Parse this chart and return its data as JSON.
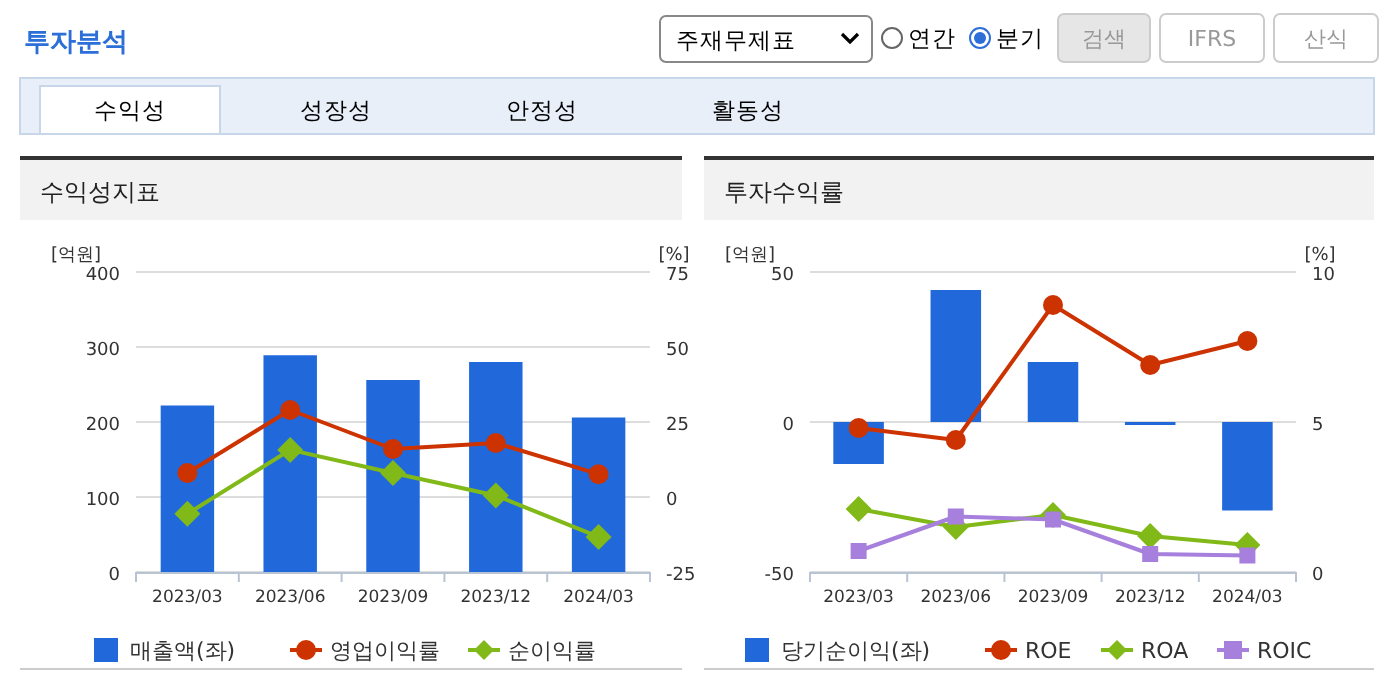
{
  "chart_data": [
    {
      "type": "other",
      "title": "투자분석",
      "annotations": [
        "주재무제표",
        "연간",
        "분기",
        "검색",
        "IFRS",
        "산식",
        "수익성",
        "성장성",
        "안정성",
        "활동성"
      ]
    },
    {
      "type": "bar",
      "title": "수익성지표",
      "ylabel": "[억원]",
      "y2label": "[%]",
      "categories": [
        "2023/03",
        "2023/06",
        "2023/09",
        "2023/12",
        "2024/03"
      ],
      "ylim": [
        0,
        400
      ],
      "yticks": [
        0,
        100,
        200,
        300,
        400
      ],
      "y2lim": [
        -25,
        75
      ],
      "y2ticks": [
        -25,
        0,
        25,
        50,
        75
      ],
      "grid": "y",
      "legend": "bottom",
      "series": [
        {
          "name": "매출액(좌)",
          "type": "bar",
          "color": "#2169db",
          "values": [
            222,
            289,
            256,
            280,
            206
          ]
        },
        {
          "name": "영업이익률",
          "type": "line",
          "axis": "y2",
          "marker": "circle",
          "color": "#cc3300",
          "values": [
            8.0,
            29,
            16,
            18,
            7.6
          ]
        },
        {
          "name": "순이익률",
          "type": "line",
          "axis": "y2",
          "marker": "diamond",
          "color": "#80b918",
          "values": [
            -5.6,
            15.7,
            8,
            0.5,
            -13.3
          ]
        }
      ]
    },
    {
      "type": "bar",
      "title": "투자수익률",
      "ylabel": "[억원]",
      "y2label": "[%]",
      "categories": [
        "2023/03",
        "2023/06",
        "2023/09",
        "2023/12",
        "2024/03"
      ],
      "ylim": [
        -50,
        50
      ],
      "yticks": [
        -50,
        0,
        50
      ],
      "y2lim": [
        0,
        10
      ],
      "y2ticks": [
        0,
        5,
        10
      ],
      "grid": "y",
      "legend": "bottom",
      "series": [
        {
          "name": "당기순이익(좌)",
          "type": "bar",
          "color": "#2169db",
          "values": [
            -14,
            44,
            20,
            -1,
            -29.5
          ]
        },
        {
          "name": "ROE",
          "type": "line",
          "axis": "y2",
          "marker": "circle",
          "color": "#cc3300",
          "values": [
            4.8,
            4.4,
            8.9,
            6.9,
            7.7
          ]
        },
        {
          "name": "ROA",
          "type": "line",
          "axis": "y2",
          "marker": "diamond",
          "color": "#80b918",
          "values": [
            2.1,
            1.5,
            1.9,
            1.2,
            0.9
          ]
        },
        {
          "name": "ROIC",
          "type": "line",
          "axis": "y2",
          "marker": "square",
          "color": "#a77fdc",
          "values": [
            0.7,
            1.85,
            1.75,
            0.6,
            0.55
          ]
        }
      ]
    }
  ]
}
